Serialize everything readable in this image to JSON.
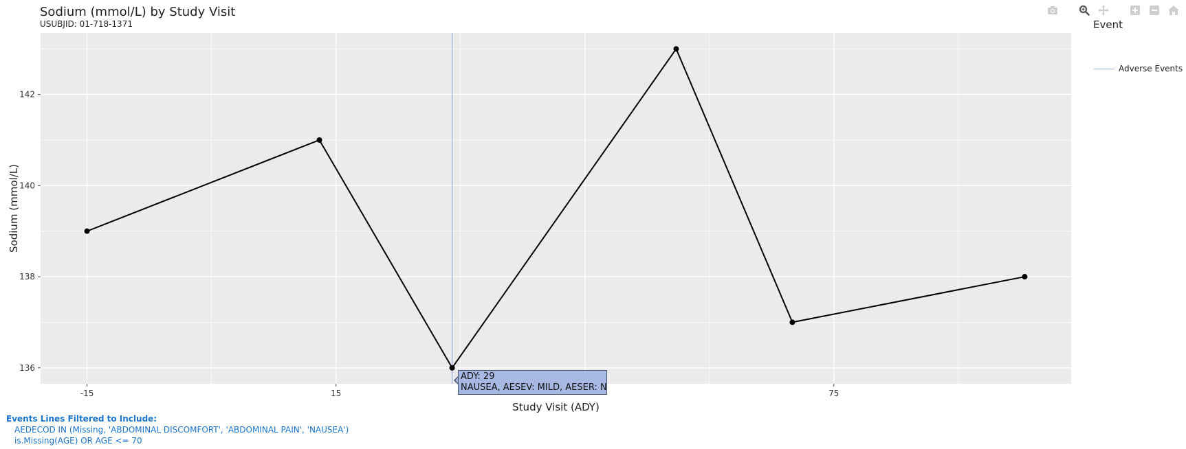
{
  "header": {
    "title": "Sodium (mmol/L) by Study Visit",
    "subtitle": "USUBJID: 01-718-1371"
  },
  "modebar": {
    "icons": [
      "camera-icon",
      "zoom-icon",
      "pan-icon",
      "zoom-in-icon",
      "zoom-out-icon",
      "home-icon"
    ]
  },
  "legend": {
    "title": "Event",
    "items": [
      {
        "label": "Adverse Events",
        "color": "#9aaed8"
      }
    ]
  },
  "tooltip": {
    "line1": "ADY: 29",
    "line2": "NAUSEA, AESEV: MILD, AESER: N"
  },
  "filters": {
    "heading": "Events Lines Filtered to Include:",
    "lines": [
      "AEDECOD IN (Missing, 'ABDOMINAL DISCOMFORT', 'ABDOMINAL PAIN', 'NAUSEA')",
      "is.Missing(AGE) OR AGE <= 70"
    ]
  },
  "chart_data": {
    "type": "line",
    "title": "Sodium (mmol/L) by Study Visit",
    "subtitle": "USUBJID: 01-718-1371",
    "xlabel": "Study Visit (ADY)",
    "ylabel": "Sodium (mmol/L)",
    "xlim": [
      -20.6,
      103.6
    ],
    "ylim": [
      135.65,
      143.35
    ],
    "xticks": [
      -15,
      15,
      75
    ],
    "yticks": [
      136,
      138,
      140,
      142
    ],
    "grid": true,
    "legend_position": "top-right",
    "colors": {
      "series": "#000000",
      "event_line": "#9aaed8",
      "plot_bg": "#ebebeb",
      "grid": "#ffffff"
    },
    "series": [
      {
        "x": [
          -15,
          13,
          29,
          56,
          70,
          98
        ],
        "values": [
          139,
          141,
          136,
          143,
          137,
          138
        ]
      }
    ],
    "event_lines": [
      {
        "x": 29,
        "label": "Adverse Events"
      }
    ]
  }
}
